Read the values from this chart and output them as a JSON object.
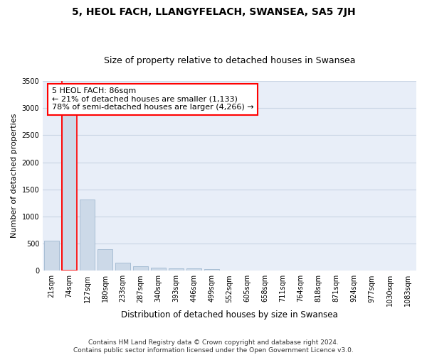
{
  "title": "5, HEOL FACH, LLANGYFELACH, SWANSEA, SA5 7JH",
  "subtitle": "Size of property relative to detached houses in Swansea",
  "xlabel": "Distribution of detached houses by size in Swansea",
  "ylabel": "Number of detached properties",
  "bar_color": "#ccd9e8",
  "bar_edge_color": "#a0b8d0",
  "annotation_text": "5 HEOL FACH: 86sqm\n← 21% of detached houses are smaller (1,133)\n78% of semi-detached houses are larger (4,266) →",
  "categories": [
    "21sqm",
    "74sqm",
    "127sqm",
    "180sqm",
    "233sqm",
    "287sqm",
    "340sqm",
    "393sqm",
    "446sqm",
    "499sqm",
    "552sqm",
    "605sqm",
    "658sqm",
    "711sqm",
    "764sqm",
    "818sqm",
    "871sqm",
    "924sqm",
    "977sqm",
    "1030sqm",
    "1083sqm"
  ],
  "values": [
    560,
    2900,
    1320,
    400,
    150,
    80,
    55,
    45,
    40,
    35,
    0,
    0,
    0,
    0,
    0,
    0,
    0,
    0,
    0,
    0,
    0
  ],
  "highlight_index": 1,
  "ylim": [
    0,
    3500
  ],
  "yticks": [
    0,
    500,
    1000,
    1500,
    2000,
    2500,
    3000,
    3500
  ],
  "grid_color": "#c8d4e4",
  "background_color": "#e8eef8",
  "footer_text": "Contains HM Land Registry data © Crown copyright and database right 2024.\nContains public sector information licensed under the Open Government Licence v3.0.",
  "title_fontsize": 10,
  "subtitle_fontsize": 9,
  "xlabel_fontsize": 8.5,
  "ylabel_fontsize": 8,
  "tick_fontsize": 7,
  "annotation_fontsize": 8,
  "footer_fontsize": 6.5
}
